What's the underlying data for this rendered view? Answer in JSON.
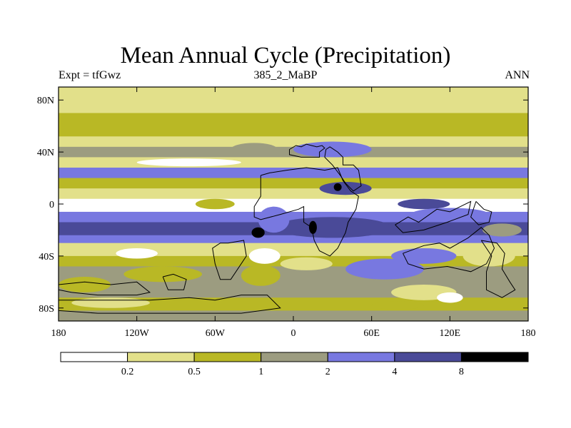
{
  "chart_data": {
    "type": "heatmap",
    "title": "Mean Annual Cycle (Precipitation)",
    "subtitle_left": "Expt = tfGwz",
    "subtitle_center": "385_2_MaBP",
    "subtitle_right": "ANN",
    "x_ticks": [
      "180",
      "120W",
      "60W",
      "0",
      "60E",
      "120E",
      "180"
    ],
    "y_ticks": [
      "80N",
      "40N",
      "0",
      "40S",
      "80S"
    ],
    "x_range": [
      -180,
      180
    ],
    "y_range": [
      -90,
      90
    ],
    "colorbar": {
      "bounds": [
        "0.2",
        "0.5",
        "1",
        "2",
        "4",
        "8"
      ],
      "colors": [
        "#ffffff",
        "#e2e08a",
        "#b9b825",
        "#9c9c80",
        "#7878e0",
        "#4a4a98",
        "#000000"
      ]
    },
    "zonal_bands": [
      {
        "lat_from": 90,
        "lat_to": 70,
        "level": 1
      },
      {
        "lat_from": 70,
        "lat_to": 52,
        "level": 2
      },
      {
        "lat_from": 52,
        "lat_to": 44,
        "level": 1
      },
      {
        "lat_from": 44,
        "lat_to": 36,
        "level": 3
      },
      {
        "lat_from": 36,
        "lat_to": 28,
        "level": 1
      },
      {
        "lat_from": 28,
        "lat_to": 20,
        "level": 4
      },
      {
        "lat_from": 20,
        "lat_to": 12,
        "level": 2
      },
      {
        "lat_from": 12,
        "lat_to": 4,
        "level": 1
      },
      {
        "lat_from": 4,
        "lat_to": -6,
        "level": 0
      },
      {
        "lat_from": -6,
        "lat_to": -14,
        "level": 4
      },
      {
        "lat_from": -14,
        "lat_to": -24,
        "level": 5
      },
      {
        "lat_from": -24,
        "lat_to": -30,
        "level": 4
      },
      {
        "lat_from": -30,
        "lat_to": -40,
        "level": 1
      },
      {
        "lat_from": -40,
        "lat_to": -48,
        "level": 2
      },
      {
        "lat_from": -48,
        "lat_to": -60,
        "level": 3
      },
      {
        "lat_from": -60,
        "lat_to": -72,
        "level": 3
      },
      {
        "lat_from": -72,
        "lat_to": -82,
        "level": 2
      },
      {
        "lat_from": -82,
        "lat_to": -90,
        "level": 3
      }
    ],
    "patches": [
      {
        "lon": -160,
        "lat": -2,
        "rx": 20,
        "ry": 3,
        "level": 0
      },
      {
        "lon": -120,
        "lat": -38,
        "rx": 16,
        "ry": 4,
        "level": 0
      },
      {
        "lon": -100,
        "lat": -54,
        "rx": 30,
        "ry": 6,
        "level": 2
      },
      {
        "lon": -160,
        "lat": -62,
        "rx": 20,
        "ry": 6,
        "level": 2
      },
      {
        "lon": -30,
        "lat": 42,
        "rx": 18,
        "ry": 5,
        "level": 3
      },
      {
        "lon": 30,
        "lat": 42,
        "rx": 30,
        "ry": 6,
        "level": 4
      },
      {
        "lon": 40,
        "lat": 12,
        "rx": 20,
        "ry": 5,
        "level": 5
      },
      {
        "lon": 30,
        "lat": -18,
        "rx": 45,
        "ry": 8,
        "level": 5
      },
      {
        "lon": -15,
        "lat": -12,
        "rx": 12,
        "ry": 10,
        "level": 4
      },
      {
        "lon": -27,
        "lat": -22,
        "rx": 5,
        "ry": 4,
        "level": 6
      },
      {
        "lon": 15,
        "lat": -18,
        "rx": 3,
        "ry": 5,
        "level": 6
      },
      {
        "lon": 34,
        "lat": 13,
        "rx": 3,
        "ry": 3,
        "level": 6
      },
      {
        "lon": -22,
        "lat": -40,
        "rx": 12,
        "ry": 6,
        "level": 0
      },
      {
        "lon": -25,
        "lat": -55,
        "rx": 15,
        "ry": 8,
        "level": 2
      },
      {
        "lon": 10,
        "lat": -46,
        "rx": 20,
        "ry": 5,
        "level": 1
      },
      {
        "lon": 30,
        "lat": -60,
        "rx": 20,
        "ry": 8,
        "level": 3
      },
      {
        "lon": 70,
        "lat": -50,
        "rx": 30,
        "ry": 8,
        "level": 4
      },
      {
        "lon": 100,
        "lat": -40,
        "rx": 25,
        "ry": 6,
        "level": 4
      },
      {
        "lon": 100,
        "lat": -68,
        "rx": 25,
        "ry": 6,
        "level": 1
      },
      {
        "lon": 120,
        "lat": -72,
        "rx": 10,
        "ry": 4,
        "level": 0
      },
      {
        "lon": 150,
        "lat": -40,
        "rx": 20,
        "ry": 8,
        "level": 1
      },
      {
        "lon": 160,
        "lat": -20,
        "rx": 15,
        "ry": 5,
        "level": 3
      },
      {
        "lon": 100,
        "lat": 0,
        "rx": 20,
        "ry": 4,
        "level": 5
      },
      {
        "lon": 120,
        "lat": -8,
        "rx": 30,
        "ry": 5,
        "level": 4
      },
      {
        "lon": -60,
        "lat": 0,
        "rx": 15,
        "ry": 4,
        "level": 2
      },
      {
        "lon": -80,
        "lat": 32,
        "rx": 40,
        "ry": 3,
        "level": 0
      },
      {
        "lon": 80,
        "lat": -78,
        "rx": 20,
        "ry": 3,
        "level": 2
      },
      {
        "lon": -140,
        "lat": -76,
        "rx": 30,
        "ry": 4,
        "level": 1
      }
    ],
    "coastlines": [
      [
        [
          -3,
          42
        ],
        [
          2,
          45
        ],
        [
          6,
          44
        ],
        [
          10,
          46
        ],
        [
          14,
          45
        ],
        [
          18,
          44
        ],
        [
          22,
          45
        ],
        [
          24,
          43
        ],
        [
          20,
          40
        ],
        [
          20,
          36
        ],
        [
          6,
          36
        ],
        [
          -3,
          38
        ],
        [
          -3,
          42
        ]
      ],
      [
        [
          24,
          36
        ],
        [
          25,
          42
        ],
        [
          28,
          44
        ],
        [
          34,
          40
        ],
        [
          38,
          36
        ],
        [
          38,
          30
        ],
        [
          46,
          30
        ],
        [
          50,
          26
        ],
        [
          52,
          14
        ],
        [
          46,
          10
        ],
        [
          40,
          16
        ],
        [
          36,
          22
        ],
        [
          30,
          30
        ],
        [
          24,
          36
        ]
      ],
      [
        [
          -25,
          22
        ],
        [
          -25,
          6
        ],
        [
          -30,
          -2
        ],
        [
          -30,
          -10
        ],
        [
          -25,
          -12
        ],
        [
          -10,
          -8
        ],
        [
          4,
          -4
        ],
        [
          8,
          -2
        ],
        [
          8,
          -14
        ],
        [
          14,
          -18
        ],
        [
          16,
          -28
        ],
        [
          20,
          -36
        ],
        [
          28,
          -40
        ],
        [
          34,
          -34
        ],
        [
          40,
          -22
        ],
        [
          42,
          -14
        ],
        [
          48,
          -4
        ],
        [
          50,
          6
        ],
        [
          44,
          10
        ],
        [
          38,
          18
        ],
        [
          34,
          28
        ],
        [
          24,
          26
        ],
        [
          10,
          28
        ],
        [
          -5,
          26
        ],
        [
          -18,
          24
        ],
        [
          -25,
          22
        ]
      ],
      [
        [
          -50,
          -30
        ],
        [
          -38,
          -28
        ],
        [
          -36,
          -40
        ],
        [
          -44,
          -52
        ],
        [
          -48,
          -58
        ],
        [
          -56,
          -58
        ],
        [
          -60,
          -46
        ],
        [
          -62,
          -34
        ],
        [
          -56,
          -30
        ],
        [
          -50,
          -30
        ]
      ],
      [
        [
          84,
          -38
        ],
        [
          100,
          -32
        ],
        [
          112,
          -30
        ],
        [
          120,
          -34
        ],
        [
          134,
          -26
        ],
        [
          144,
          -18
        ],
        [
          150,
          -24
        ],
        [
          154,
          -34
        ],
        [
          148,
          -46
        ],
        [
          136,
          -52
        ],
        [
          118,
          -48
        ],
        [
          100,
          -50
        ],
        [
          88,
          -46
        ],
        [
          84,
          -38
        ]
      ],
      [
        [
          78,
          -16
        ],
        [
          88,
          -10
        ],
        [
          96,
          -14
        ],
        [
          110,
          -4
        ],
        [
          120,
          -6
        ],
        [
          128,
          -2
        ],
        [
          136,
          2
        ],
        [
          134,
          -8
        ],
        [
          118,
          -14
        ],
        [
          100,
          -20
        ],
        [
          84,
          -22
        ],
        [
          78,
          -16
        ]
      ],
      [
        [
          140,
          2
        ],
        [
          146,
          -4
        ],
        [
          152,
          -6
        ],
        [
          150,
          -14
        ],
        [
          142,
          -16
        ],
        [
          136,
          -10
        ],
        [
          140,
          2
        ]
      ],
      [
        [
          144,
          -28
        ],
        [
          156,
          -30
        ],
        [
          162,
          -38
        ],
        [
          160,
          -50
        ],
        [
          166,
          -60
        ],
        [
          170,
          -66
        ],
        [
          160,
          -72
        ],
        [
          148,
          -66
        ],
        [
          148,
          -52
        ],
        [
          152,
          -40
        ],
        [
          144,
          -28
        ]
      ],
      [
        [
          -180,
          -62
        ],
        [
          -160,
          -60
        ],
        [
          -140,
          -62
        ],
        [
          -120,
          -60
        ],
        [
          -110,
          -68
        ],
        [
          -120,
          -70
        ],
        [
          -150,
          -70
        ],
        [
          -170,
          -68
        ],
        [
          -180,
          -66
        ]
      ],
      [
        [
          -180,
          -74
        ],
        [
          -150,
          -74
        ],
        [
          -110,
          -74
        ],
        [
          -80,
          -72
        ],
        [
          -60,
          -74
        ],
        [
          -40,
          -70
        ],
        [
          -20,
          -70
        ],
        [
          -10,
          -80
        ],
        [
          -40,
          -84
        ],
        [
          -100,
          -84
        ],
        [
          -150,
          -84
        ],
        [
          -180,
          -82
        ]
      ],
      [
        [
          -100,
          -56
        ],
        [
          -92,
          -54
        ],
        [
          -82,
          -58
        ],
        [
          -84,
          -66
        ],
        [
          -96,
          -66
        ],
        [
          -100,
          -56
        ]
      ]
    ]
  }
}
